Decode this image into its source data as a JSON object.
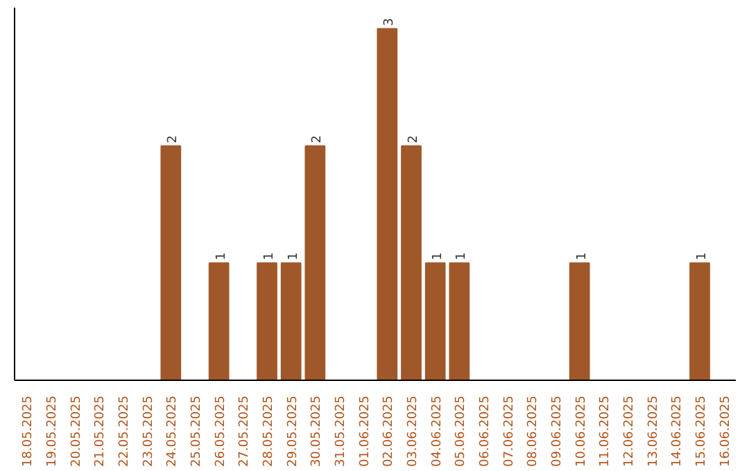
{
  "chart_data": {
    "type": "bar",
    "categories": [
      "18.05.2025",
      "19.05.2025",
      "20.05.2025",
      "21.05.2025",
      "22.05.2025",
      "23.05.2025",
      "24.05.2025",
      "25.05.2025",
      "26.05.2025",
      "27.05.2025",
      "28.05.2025",
      "29.05.2025",
      "30.05.2025",
      "31.05.2025",
      "01.06.2025",
      "02.06.2025",
      "03.06.2025",
      "04.06.2025",
      "05.06.2025",
      "06.06.2025",
      "07.06.2025",
      "08.06.2025",
      "09.06.2025",
      "10.06.2025",
      "11.06.2025",
      "12.06.2025",
      "13.06.2025",
      "14.06.2025",
      "15.06.2025",
      "16.06.2025"
    ],
    "values": [
      0,
      0,
      0,
      0,
      0,
      0,
      2,
      0,
      1,
      0,
      1,
      1,
      2,
      0,
      0,
      3,
      2,
      1,
      1,
      0,
      0,
      0,
      0,
      1,
      0,
      0,
      0,
      0,
      1,
      0
    ],
    "value_labels": [
      null,
      null,
      null,
      null,
      null,
      null,
      "2",
      null,
      "1",
      null,
      "1",
      "1",
      "2",
      null,
      null,
      "3",
      "2",
      "1",
      "1",
      null,
      null,
      null,
      null,
      "1",
      null,
      null,
      null,
      null,
      "1",
      null
    ],
    "color": "#a0582a",
    "tick_labels": "x",
    "grid": false
  }
}
